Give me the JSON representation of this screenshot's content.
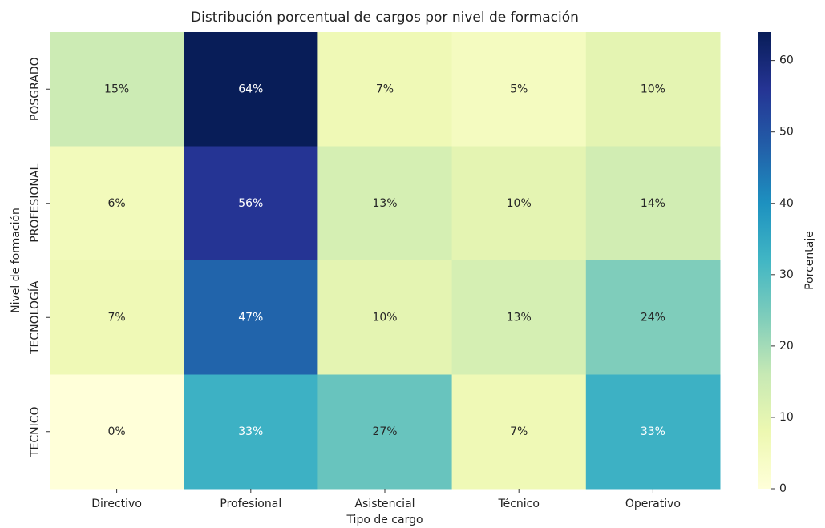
{
  "chart_data": {
    "type": "heatmap",
    "title": "Distribución porcentual de cargos por nivel de formación",
    "x_label": "Tipo de cargo",
    "y_label": "Nivel de formación",
    "x_categories": [
      "Directivo",
      "Profesional",
      "Asistencial",
      "Técnico",
      "Operativo"
    ],
    "y_categories": [
      "POSGRADO",
      "PROFESIONAL",
      "TECNOLOGÍA",
      "TECNICO"
    ],
    "values": [
      [
        15,
        64,
        7,
        5,
        10
      ],
      [
        6,
        56,
        13,
        10,
        14
      ],
      [
        7,
        47,
        10,
        13,
        24
      ],
      [
        0,
        33,
        27,
        7,
        33
      ]
    ],
    "value_labels": [
      [
        "15%",
        "64%",
        "7%",
        "5%",
        "10%"
      ],
      [
        "6%",
        "56%",
        "13%",
        "10%",
        "14%"
      ],
      [
        "7%",
        "47%",
        "10%",
        "13%",
        "24%"
      ],
      [
        "0%",
        "33%",
        "27%",
        "7%",
        "33%"
      ]
    ],
    "colormap": "YlGnBu",
    "colorbar_label": "Porcentaje",
    "clim": [
      0,
      64
    ],
    "cticks": [
      0,
      10,
      20,
      30,
      40,
      50,
      60
    ]
  }
}
